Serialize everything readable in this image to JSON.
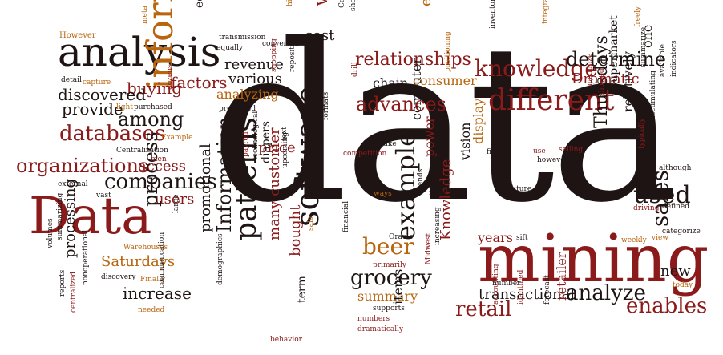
{
  "image": {
    "type": "word-cloud",
    "colors": {
      "dark": "#1e1414",
      "red": "#8b1a1a",
      "orange": "#b8650e",
      "background": "#ffffff"
    }
  },
  "words": {
    "data_big": "data",
    "mining": "mining",
    "Data": "Data",
    "analysis": "analysis",
    "information": "information",
    "software": "software",
    "warehousing": "warehousing",
    "different": "different",
    "knowledge": "knowledge",
    "relationships": "relationships",
    "determine": "determine",
    "databases": "databases",
    "organizations": "organizations",
    "companies": "companies",
    "patterns": "patterns",
    "example": "example",
    "Information": "Information",
    "advances": "advances",
    "beer": "beer",
    "grocery": "grocery",
    "used": "used",
    "sales": "sales",
    "enables": "enables",
    "analyze": "analyze",
    "Thursdays": "Thursdays",
    "retail": "retail",
    "among": "among",
    "provide": "provide",
    "buying": "buying",
    "factors": "factors",
    "discovered": "discovered",
    "revenue": "revenue",
    "various": "various",
    "analyzing": "analyzing",
    "price": "price",
    "access": "access",
    "users": "users",
    "process": "process",
    "processing": "processing",
    "increase": "increase",
    "Saturdays": "Saturdays",
    "promotional": "promotional",
    "many_customer": "many customer",
    "bought": "bought",
    "summary": "summary",
    "term": "term",
    "items": "items",
    "Knowledge": "Knowledge",
    "transactional": "transactional",
    "years": "years",
    "new": "new",
    "Dramatic": "Dramatic",
    "consumer": "consumer",
    "chain": "chain",
    "efforts": "efforts",
    "cost": "cost",
    "economic": "economic",
    "storage": "storage",
    "computer": "computer",
    "power": "power",
    "vision": "vision",
    "display": "display",
    "supermarket": "supermarket",
    "relatively": "relatively",
    "one": "one",
    "retailer": "retailer",
    "diapers": "diapers",
    "However": "However",
    "meta": "meta",
    "transmission": "transmission",
    "equally": "equally",
    "converted": "converted",
    "historical": "historical",
    "Continuous": "Continuous",
    "shoppers": "shoppers",
    "inventory": "inventory",
    "integrate": "integrate",
    "freely": "freely",
    "detail": "detail",
    "capture": "capture",
    "light": "light",
    "purchased": "purchased",
    "dozens": "dozens",
    "shopping": "shopping",
    "repository": "repository",
    "processed": "processed",
    "drill": "drill",
    "positioning": "positioning",
    "Example": "Example",
    "Centralization": "Centralization",
    "men": "men",
    "formats": "formats",
    "text": "text",
    "make": "make",
    "competition": "competition",
    "fields": "fields",
    "use": "use",
    "selling": "selling",
    "however": "however",
    "maximize": "maximize",
    "showed": "showed",
    "summarize": "summarize",
    "available": "available",
    "indicators": "indicators",
    "accumulating": "accumulating",
    "typically": "typically",
    "although": "although",
    "external": "external",
    "vast": "vast",
    "large": "large",
    "payroll": "payroll",
    "technological": "technological",
    "upcoming": "upcoming",
    "ways": "ways",
    "facts": "facts",
    "trends": "trends",
    "future": "future",
    "driving": "driving",
    "defined": "defined",
    "categorize": "categorize",
    "weekly": "weekly",
    "view": "view",
    "Warehouses": "Warehouses",
    "volumes": "volumes",
    "summarizing": "summarizing",
    "reports": "reports",
    "centralized": "centralized",
    "nonoperational": "nonoperational",
    "discovery": "discovery",
    "Finally": "Finally",
    "needed": "needed",
    "communication": "communication",
    "demographics": "demographics",
    "behavior": "behavior",
    "sale": "sale",
    "Oracle": "Oracle",
    "financial": "financial",
    "primarily": "primarily",
    "supports": "supports",
    "numbers": "numbers",
    "dramatically": "dramatically",
    "Midwest": "Midwest",
    "increasing": "increasing",
    "sift": "sift",
    "number": "number",
    "accounting": "accounting",
    "identified": "identified",
    "forecast": "forecast",
    "today": "today"
  }
}
